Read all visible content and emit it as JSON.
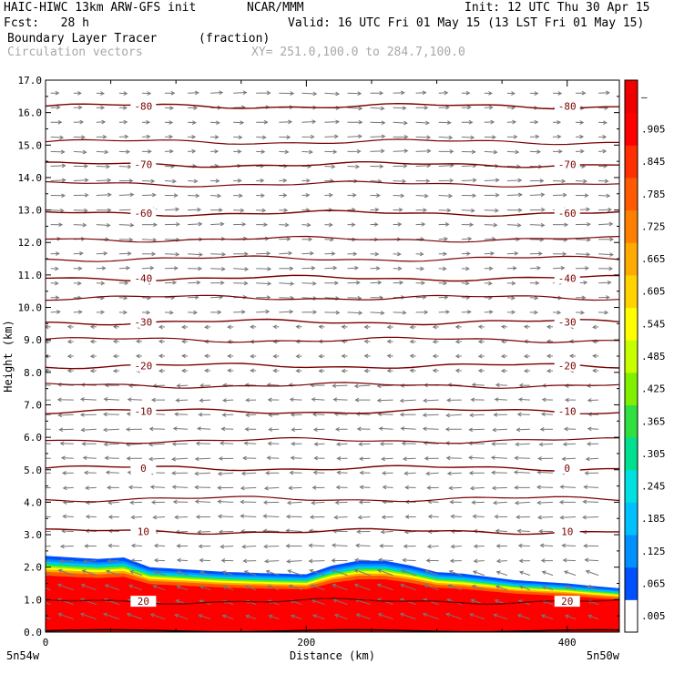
{
  "header": {
    "model": "HAIC-HIWC 13km ARW-GFS init",
    "org": "NCAR/MMM",
    "init": "Init: 12 UTC Thu 30 Apr 15",
    "fcst": "Fcst:   28 h",
    "valid": "Valid: 16 UTC Fri 01 May 15 (13 LST Fri 01 May 15)",
    "field": "Boundary Layer Tracer",
    "units": "(fraction)",
    "vectors": "Circulation vectors",
    "xy": "XY= 251.0,100.0 to 284.7,100.0"
  },
  "chart_data": {
    "type": "heatmap",
    "title": "Boundary Layer Tracer",
    "units": "(fraction)",
    "xlabel": "Distance (km)",
    "ylabel": "Height (km)",
    "xlim": [
      0,
      440
    ],
    "ylim": [
      0,
      17
    ],
    "x_ticks": [
      0,
      200,
      400
    ],
    "x_tick_labels": [
      "0",
      "200",
      "400"
    ],
    "y_ticks": [
      0.0,
      1.0,
      2.0,
      3.0,
      4.0,
      5.0,
      6.0,
      7.0,
      8.0,
      9.0,
      10.0,
      11.0,
      12.0,
      13.0,
      14.0,
      15.0,
      16.0,
      17.0
    ],
    "y_tick_labels": [
      "0.0",
      "1.0",
      "2.0",
      "3.0",
      "4.0",
      "5.0",
      "6.0",
      "7.0",
      "8.0",
      "9.0",
      "10.0",
      "11.0",
      "12.0",
      "13.0",
      "14.0",
      "15.0",
      "16.0",
      "17.0"
    ],
    "x_endpoint_labels": [
      "5n54w",
      "5n50w"
    ],
    "colorbar": {
      "labels": [
        ".005",
        ".065",
        ".125",
        ".185",
        ".245",
        ".305",
        ".365",
        ".425",
        ".485",
        ".545",
        ".605",
        ".665",
        ".725",
        ".785",
        ".845",
        ".905",
        "–"
      ],
      "values": [
        0.005,
        0.065,
        0.125,
        0.185,
        0.245,
        0.305,
        0.365,
        0.425,
        0.485,
        0.545,
        0.605,
        0.665,
        0.725,
        0.785,
        0.845,
        0.905,
        0.965
      ],
      "colors": [
        "#ffffff",
        "#0050ff",
        "#0090ff",
        "#00c0ff",
        "#00e0e0",
        "#00e090",
        "#30e040",
        "#80f000",
        "#c8ff00",
        "#ffff00",
        "#ffd200",
        "#ffaa00",
        "#ff8000",
        "#ff5a00",
        "#ff3000",
        "#ff0000",
        "#ee0000"
      ]
    },
    "bl_top_km": {
      "x": [
        0,
        20,
        40,
        60,
        80,
        100,
        140,
        180,
        200,
        220,
        240,
        260,
        280,
        300,
        320,
        340,
        360,
        380,
        400,
        420,
        440
      ],
      "y": [
        2.35,
        2.3,
        2.25,
        2.3,
        2.0,
        1.95,
        1.85,
        1.8,
        1.78,
        2.05,
        2.2,
        2.2,
        2.05,
        1.85,
        1.8,
        1.7,
        1.6,
        1.55,
        1.5,
        1.42,
        1.35
      ]
    },
    "isotherms_C": [
      {
        "label": "-80",
        "height_km": 16.2
      },
      {
        "label": "-70",
        "height_km": 14.4
      },
      {
        "label": "-60",
        "height_km": 12.9
      },
      {
        "label": "-40",
        "height_km": 10.9
      },
      {
        "label": "-30",
        "height_km": 9.55
      },
      {
        "label": "-20",
        "height_km": 8.2
      },
      {
        "label": "-10",
        "height_km": 6.8
      },
      {
        "label": "0",
        "height_km": 5.05
      },
      {
        "label": "10",
        "height_km": 3.1
      },
      {
        "label": "20",
        "height_km": 0.95
      }
    ],
    "unlabeled_isotherm_heights_km": [
      15.1,
      13.8,
      12.1,
      11.5,
      10.3,
      9.0,
      7.6,
      5.9,
      4.1
    ]
  }
}
